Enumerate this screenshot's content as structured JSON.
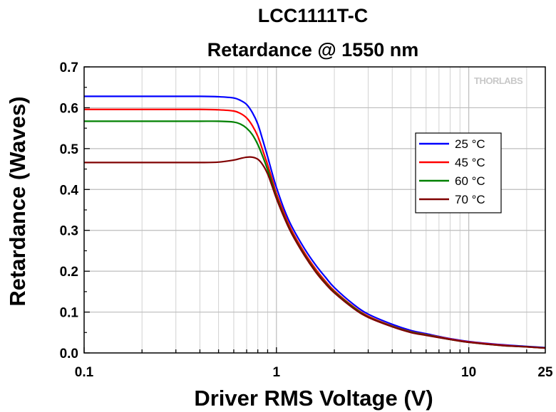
{
  "chart_data": {
    "type": "line",
    "title": "LCC1111T-C",
    "subtitle": "Retardance @ 1550 nm",
    "xlabel": "Driver RMS Voltage (V)",
    "ylabel": "Retardance (Waves)",
    "xscale": "log",
    "xlim": [
      0.1,
      25
    ],
    "ylim": [
      0,
      0.7
    ],
    "xticks": [
      0.1,
      1,
      10,
      25
    ],
    "xtick_labels": [
      "0.1",
      "1",
      "10",
      "25"
    ],
    "yticks": [
      0,
      0.1,
      0.2,
      0.3,
      0.4,
      0.5,
      0.6,
      0.7
    ],
    "ytick_labels": [
      "0.0",
      "0.1",
      "0.2",
      "0.3",
      "0.4",
      "0.5",
      "0.6",
      "0.7"
    ],
    "grid": true,
    "legend_position": "right",
    "watermark": "THORLABS",
    "series": [
      {
        "name": "25 °C",
        "color": "#0000ff",
        "x": [
          0.1,
          0.2,
          0.3,
          0.4,
          0.5,
          0.6,
          0.65,
          0.7,
          0.75,
          0.8,
          0.85,
          0.9,
          0.95,
          1.0,
          1.1,
          1.2,
          1.4,
          1.6,
          1.8,
          2.0,
          2.5,
          3,
          4,
          5,
          6,
          8,
          10,
          15,
          20,
          25
        ],
        "y": [
          0.628,
          0.628,
          0.628,
          0.628,
          0.627,
          0.624,
          0.618,
          0.608,
          0.588,
          0.56,
          0.52,
          0.48,
          0.44,
          0.405,
          0.35,
          0.31,
          0.255,
          0.215,
          0.185,
          0.16,
          0.12,
          0.095,
          0.07,
          0.055,
          0.047,
          0.035,
          0.028,
          0.02,
          0.016,
          0.013
        ]
      },
      {
        "name": "45 °C",
        "color": "#ff0000",
        "x": [
          0.1,
          0.2,
          0.3,
          0.4,
          0.5,
          0.6,
          0.65,
          0.7,
          0.75,
          0.8,
          0.85,
          0.9,
          0.95,
          1.0,
          1.1,
          1.2,
          1.4,
          1.6,
          1.8,
          2.0,
          2.5,
          3,
          4,
          5,
          6,
          8,
          10,
          15,
          20,
          25
        ],
        "y": [
          0.596,
          0.596,
          0.596,
          0.596,
          0.595,
          0.592,
          0.586,
          0.575,
          0.556,
          0.53,
          0.495,
          0.46,
          0.425,
          0.39,
          0.34,
          0.3,
          0.245,
          0.205,
          0.175,
          0.152,
          0.114,
          0.09,
          0.066,
          0.052,
          0.045,
          0.034,
          0.027,
          0.019,
          0.015,
          0.012
        ]
      },
      {
        "name": "60 °C",
        "color": "#008000",
        "x": [
          0.1,
          0.2,
          0.3,
          0.4,
          0.5,
          0.6,
          0.65,
          0.7,
          0.75,
          0.8,
          0.85,
          0.9,
          0.95,
          1.0,
          1.1,
          1.2,
          1.4,
          1.6,
          1.8,
          2.0,
          2.5,
          3,
          4,
          5,
          6,
          8,
          10,
          15,
          20,
          25
        ],
        "y": [
          0.567,
          0.567,
          0.567,
          0.567,
          0.567,
          0.565,
          0.56,
          0.55,
          0.534,
          0.51,
          0.48,
          0.448,
          0.415,
          0.382,
          0.333,
          0.294,
          0.24,
          0.2,
          0.171,
          0.149,
          0.112,
          0.088,
          0.065,
          0.051,
          0.044,
          0.033,
          0.026,
          0.018,
          0.015,
          0.012
        ]
      },
      {
        "name": "70 °C",
        "color": "#800000",
        "x": [
          0.1,
          0.2,
          0.3,
          0.4,
          0.5,
          0.6,
          0.65,
          0.7,
          0.75,
          0.8,
          0.85,
          0.9,
          0.95,
          1.0,
          1.1,
          1.2,
          1.4,
          1.6,
          1.8,
          2.0,
          2.5,
          3,
          4,
          5,
          6,
          8,
          10,
          15,
          20,
          25
        ],
        "y": [
          0.466,
          0.466,
          0.466,
          0.466,
          0.467,
          0.472,
          0.476,
          0.479,
          0.479,
          0.474,
          0.46,
          0.438,
          0.408,
          0.378,
          0.33,
          0.292,
          0.238,
          0.198,
          0.169,
          0.147,
          0.11,
          0.087,
          0.064,
          0.05,
          0.043,
          0.033,
          0.026,
          0.018,
          0.015,
          0.012
        ]
      }
    ]
  }
}
